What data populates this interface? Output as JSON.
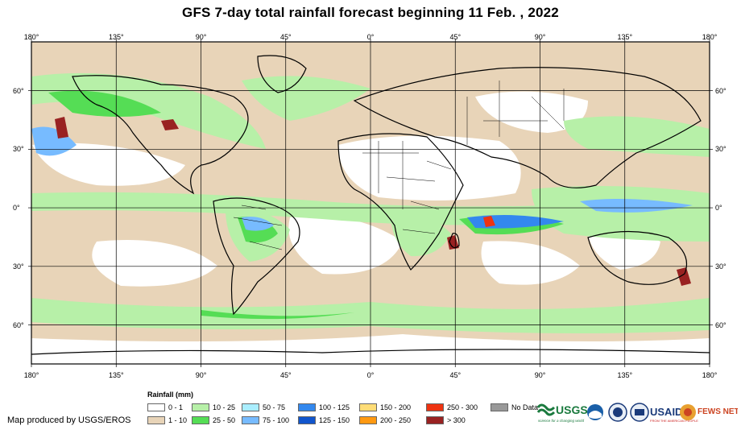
{
  "title": "GFS 7-day total rainfall forecast beginning 11 Feb. , 2022",
  "map": {
    "extent": {
      "lon": [
        -180,
        180
      ],
      "lat": [
        -80,
        85
      ]
    },
    "background_color": "#e8d4b8",
    "grid_color": "#000000",
    "graticule": {
      "lon_step": 45,
      "lat_step": 30
    }
  },
  "axes": {
    "lon_labels": [
      "180°",
      "135°",
      "90°",
      "45°",
      "0°",
      "45°",
      "90°",
      "135°",
      "180°"
    ],
    "lat_labels": [
      "60°",
      "30°",
      "0°",
      "30°",
      "60°"
    ]
  },
  "legend": {
    "title": "Rainfall (mm)",
    "items": [
      {
        "label": "0 - 1",
        "color": "#ffffff"
      },
      {
        "label": "1 - 10",
        "color": "#e8d4b8"
      },
      {
        "label": "10 - 25",
        "color": "#b7f0a8"
      },
      {
        "label": "25 - 50",
        "color": "#55dd55"
      },
      {
        "label": "50 - 75",
        "color": "#aaeeff"
      },
      {
        "label": "75 - 100",
        "color": "#77bbff"
      },
      {
        "label": "100 - 125",
        "color": "#3388ee"
      },
      {
        "label": "125 - 150",
        "color": "#1155cc"
      },
      {
        "label": "150 - 200",
        "color": "#ffdd77"
      },
      {
        "label": "200 - 250",
        "color": "#ff9911"
      },
      {
        "label": "250 - 300",
        "color": "#ee3311"
      },
      {
        "label": "> 300",
        "color": "#992222"
      },
      {
        "label": "No Data",
        "color": "#999999"
      }
    ]
  },
  "credit": "Map produced by USGS/EROS",
  "logos": {
    "usgs": "USGS",
    "usgs_tagline": "science for a changing world",
    "usaid": "USAID",
    "usaid_tagline": "FROM THE AMERICAN PEOPLE",
    "fews": "FEWS NET"
  }
}
